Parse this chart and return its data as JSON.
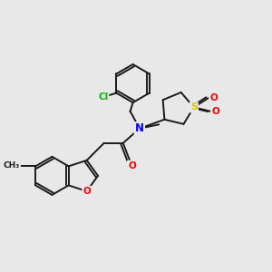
{
  "background_color": "#e8e8e8",
  "bond_color": "#1a1a1a",
  "N_color": "#0000ff",
  "O_color": "#ff0000",
  "S_color": "#cccc00",
  "Cl_color": "#00bb00",
  "figsize": [
    3.0,
    3.0
  ],
  "dpi": 100,
  "xlim": [
    0,
    10
  ],
  "ylim": [
    0,
    10
  ]
}
